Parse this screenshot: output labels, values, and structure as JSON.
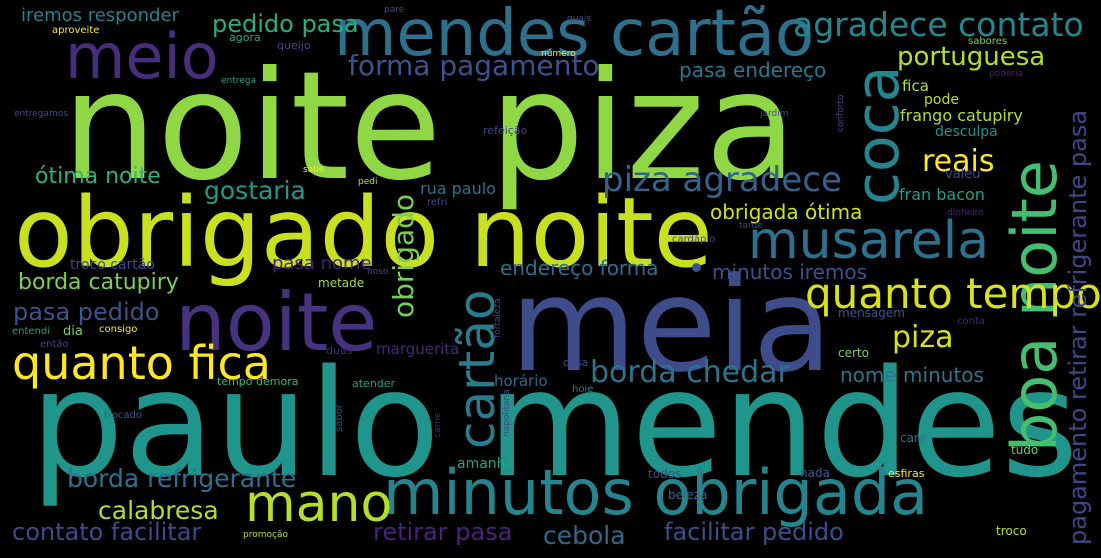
{
  "words": [
    {
      "key": "noite-piza",
      "text": "noite piza",
      "color": "#8fd744"
    },
    {
      "key": "paulo-mendes",
      "text": "paulo mendes",
      "color": "#1f958b"
    },
    {
      "key": "obrigado-noite",
      "text": "obrigado noite",
      "color": "#c8e020"
    },
    {
      "key": "meia",
      "text": "meia",
      "color": "#3e4c8a"
    },
    {
      "key": "mendes-cartao",
      "text": "mendes cartão",
      "color": "#2d708e"
    },
    {
      "key": "minutos-obrigada",
      "text": "minutos obrigada",
      "color": "#25858e"
    },
    {
      "key": "noite-mid",
      "text": "noite",
      "color": "#46327e"
    },
    {
      "key": "meio",
      "text": "meio",
      "color": "#472d7b"
    },
    {
      "key": "musarela",
      "text": "musarela",
      "color": "#2c728e"
    },
    {
      "key": "boa-noite",
      "text": "boa noite",
      "color": "#44bf70"
    },
    {
      "key": "coca",
      "text": "coca",
      "color": "#25858e"
    },
    {
      "key": "cartao-v",
      "text": "cartão",
      "color": "#287c8e"
    },
    {
      "key": "quanto-fica",
      "text": "quanto fica",
      "color": "#fde725"
    },
    {
      "key": "mano",
      "text": "mano",
      "color": "#b5de2b"
    },
    {
      "key": "quanto-tempo",
      "text": "quanto tempo",
      "color": "#d8e219"
    },
    {
      "key": "agradece-contato",
      "text": "agradece contato",
      "color": "#24878e"
    },
    {
      "key": "piza-agradece",
      "text": "piza agradece",
      "color": "#33638d"
    },
    {
      "key": "forma-pagamento",
      "text": "forma pagamento",
      "color": "#3b528b"
    },
    {
      "key": "borda-chedar",
      "text": "borda chedar",
      "color": "#2c738e"
    },
    {
      "key": "pagamento-retirar-refrigerante-pasa",
      "text": "pagamento retirar refrigerante pasa",
      "color": "#3f4788"
    },
    {
      "key": "portuguesa",
      "text": "portuguesa",
      "color": "#b5de2b"
    },
    {
      "key": "reais",
      "text": "reais",
      "color": "#fde725"
    },
    {
      "key": "piza-small",
      "text": "piza",
      "color": "#d8e219"
    },
    {
      "key": "obrigado-v",
      "text": "obrigado",
      "color": "#75d054"
    },
    {
      "key": "otima-noite",
      "text": "ótima noite",
      "color": "#2db27d"
    },
    {
      "key": "gostaria",
      "text": "gostaria",
      "color": "#1f9a8a"
    },
    {
      "key": "borda-catupiry",
      "text": "borda catupiry",
      "color": "#7ad151"
    },
    {
      "key": "pasa-pedido",
      "text": "pasa pedido",
      "color": "#3b528b"
    },
    {
      "key": "pedido-pasa",
      "text": "pedido pasa",
      "color": "#26ad81"
    },
    {
      "key": "iremos-responder",
      "text": "iremos responder",
      "color": "#26828e"
    },
    {
      "key": "borda-refrigerante",
      "text": "borda refrigerante",
      "color": "#2c728e"
    },
    {
      "key": "calabresa",
      "text": "calabresa",
      "color": "#b5de2b"
    },
    {
      "key": "contato-facilitar",
      "text": "contato facilitar",
      "color": "#3e4a89"
    },
    {
      "key": "retirar-pasa",
      "text": "retirar pasa",
      "color": "#482475"
    },
    {
      "key": "cebola",
      "text": "cebola",
      "color": "#31688e"
    },
    {
      "key": "facilitar-pedido",
      "text": "facilitar pedido",
      "color": "#3c4f8a"
    },
    {
      "key": "pasa-endereco",
      "text": "pasa endereço",
      "color": "#2a788e"
    },
    {
      "key": "obrigada-otima",
      "text": "obrigada ótima",
      "color": "#d2e21b"
    },
    {
      "key": "endereco-forma",
      "text": "endereço forma",
      "color": "#2e6e8e"
    },
    {
      "key": "minutos-iremos",
      "text": "minutos iremos",
      "color": "#3b528b"
    },
    {
      "key": "nome-minutos",
      "text": "nome minutos",
      "color": "#2a768e"
    },
    {
      "key": "pasa-nome",
      "text": "pasa nome",
      "color": "#482173"
    },
    {
      "key": "troco-cartao",
      "text": "troco cartão",
      "color": "#3f4889"
    },
    {
      "key": "metade",
      "text": "metade",
      "color": "#a5db36"
    },
    {
      "key": "rua-paulo",
      "text": "rua paulo",
      "color": "#2c728e"
    },
    {
      "key": "marguerita",
      "text": "marguerita",
      "color": "#482878"
    },
    {
      "key": "horario",
      "text": "horário",
      "color": "#31688e"
    },
    {
      "key": "amanha",
      "text": "amanhã",
      "color": "#20a486"
    },
    {
      "key": "fran-bacon",
      "text": "fran bacon",
      "color": "#1f9e89"
    },
    {
      "key": "frango-catupiry",
      "text": "frango catupiry",
      "color": "#b5de2b"
    },
    {
      "key": "desculpa",
      "text": "desculpa",
      "color": "#21918c"
    },
    {
      "key": "pode",
      "text": "pode",
      "color": "#b5de2b"
    },
    {
      "key": "fica",
      "text": "fica",
      "color": "#b5de2b"
    },
    {
      "key": "valeu",
      "text": "valeu",
      "color": "#3e4989"
    },
    {
      "key": "tudo",
      "text": "tudo",
      "color": "#6ccd5a"
    },
    {
      "key": "troco",
      "text": "troco",
      "color": "#c0df25"
    },
    {
      "key": "cara",
      "text": "cara",
      "color": "#2b758e"
    },
    {
      "key": "certo",
      "text": "certo",
      "color": "#7ad151"
    },
    {
      "key": "mensagem",
      "text": "mensagem",
      "color": "#3a548c"
    },
    {
      "key": "nada",
      "text": "nada",
      "color": "#365c8d"
    },
    {
      "key": "beleza",
      "text": "beleza",
      "color": "#31688e"
    },
    {
      "key": "todos",
      "text": "todos",
      "color": "#414487"
    },
    {
      "key": "esfiras",
      "text": "esfiras",
      "color": "#fde725"
    },
    {
      "key": "casa",
      "text": "casa",
      "color": "#3e4989"
    },
    {
      "key": "hoje",
      "text": "hoje",
      "color": "#277f8e"
    },
    {
      "key": "atender",
      "text": "atender",
      "color": "#1f9e89"
    },
    {
      "key": "duas",
      "text": "duas",
      "color": "#482878"
    },
    {
      "key": "dia",
      "text": "dia",
      "color": "#7ad151"
    },
    {
      "key": "consigo",
      "text": "consigo",
      "color": "#fde725"
    },
    {
      "key": "entendi",
      "text": "entendi",
      "color": "#1f9e89"
    },
    {
      "key": "entao",
      "text": "então",
      "color": "#3e4989"
    },
    {
      "key": "tempo-demora",
      "text": "tempo demora",
      "color": "#35b779"
    },
    {
      "key": "trocado",
      "text": "trocado",
      "color": "#38598c"
    },
    {
      "key": "promocao",
      "text": "promoção",
      "color": "#b5de2b"
    },
    {
      "key": "noso",
      "text": "noso",
      "color": "#3e4989"
    },
    {
      "key": "tarde",
      "text": "tarde",
      "color": "#3e4989"
    },
    {
      "key": "cardapio",
      "text": "cardápio",
      "color": "#3e4989"
    },
    {
      "key": "refri",
      "text": "refri",
      "color": "#3e4989"
    },
    {
      "key": "pedi",
      "text": "pedi",
      "color": "#b5de2b"
    },
    {
      "key": "sabe",
      "text": "sabe",
      "color": "#fde725"
    },
    {
      "key": "refeicao",
      "text": "refeição",
      "color": "#3e4989"
    },
    {
      "key": "jardim",
      "text": "jardim",
      "color": "#3e4989"
    },
    {
      "key": "dinheiro",
      "text": "dinheiro",
      "color": "#482173"
    },
    {
      "key": "conta",
      "text": "conta",
      "color": "#482878"
    },
    {
      "key": "poderia",
      "text": "poderia",
      "color": "#482173"
    },
    {
      "key": "sabores",
      "text": "sabores",
      "color": "#7ad151"
    },
    {
      "key": "numero",
      "text": "número",
      "color": "#fde725"
    },
    {
      "key": "quais",
      "text": "quais",
      "color": "#3e4989"
    },
    {
      "key": "pare",
      "text": "pare",
      "color": "#3e4989"
    },
    {
      "key": "queijo",
      "text": "queijo",
      "color": "#3e4989"
    },
    {
      "key": "agora",
      "text": "agora",
      "color": "#22a884"
    },
    {
      "key": "aproveite",
      "text": "aproveite",
      "color": "#fde725"
    },
    {
      "key": "entrega",
      "text": "entrega",
      "color": "#1f9e89"
    },
    {
      "key": "entregamos",
      "text": "entregamos",
      "color": "#3e4989"
    },
    {
      "key": "conforto",
      "text": "conforto",
      "color": "#3e4989"
    },
    {
      "key": "fortaleza",
      "text": "fortaleza",
      "color": "#3e4989"
    },
    {
      "key": "napolitana",
      "text": "napolitana",
      "color": "#3e4989"
    },
    {
      "key": "sabor",
      "text": "sabor",
      "color": "#3e4989"
    },
    {
      "key": "carne",
      "text": "carne",
      "color": "#482878"
    }
  ]
}
